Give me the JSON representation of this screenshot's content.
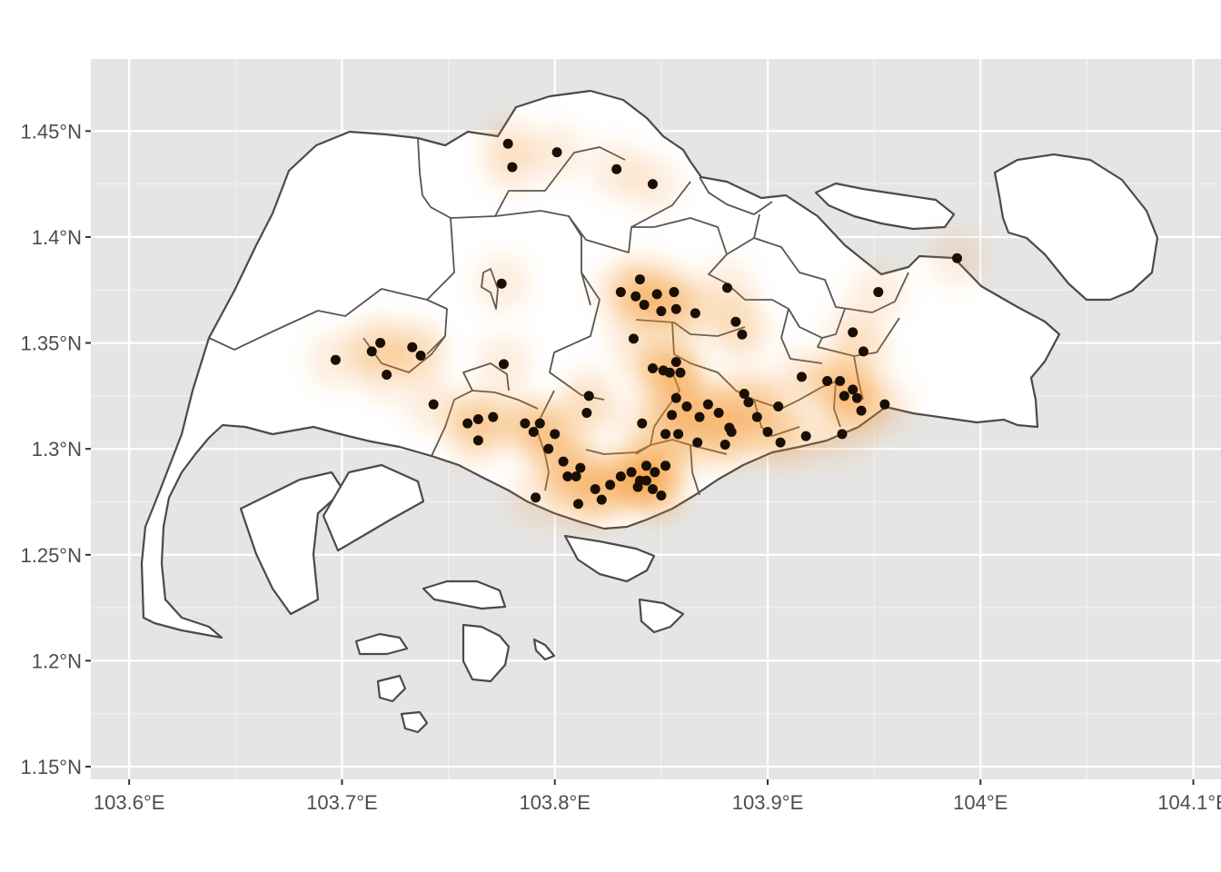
{
  "chart_data": {
    "type": "scatter",
    "title": "",
    "xlabel": "",
    "ylabel": "",
    "xlim": [
      103.582,
      104.113
    ],
    "ylim": [
      1.144,
      1.484
    ],
    "grid": true,
    "background": "#e5e5e5",
    "x_ticks": [
      {
        "value": 103.6,
        "label": "103.6°E"
      },
      {
        "value": 103.7,
        "label": "103.7°E"
      },
      {
        "value": 103.8,
        "label": "103.8°E"
      },
      {
        "value": 103.9,
        "label": "103.9°E"
      },
      {
        "value": 104.0,
        "label": "104°E"
      },
      {
        "value": 104.1,
        "label": "104.1°E"
      }
    ],
    "y_ticks": [
      {
        "value": 1.15,
        "label": "1.15°N"
      },
      {
        "value": 1.2,
        "label": "1.2°N"
      },
      {
        "value": 1.25,
        "label": "1.25°N"
      },
      {
        "value": 1.3,
        "label": "1.3°N"
      },
      {
        "value": 1.35,
        "label": "1.35°N"
      },
      {
        "value": 1.4,
        "label": "1.4°N"
      },
      {
        "value": 1.45,
        "label": "1.45°N"
      }
    ],
    "density_color": "#f28e1c",
    "point_color": "#1a0f05",
    "points": [
      [
        103.778,
        1.444
      ],
      [
        103.78,
        1.433
      ],
      [
        103.801,
        1.44
      ],
      [
        103.829,
        1.432
      ],
      [
        103.846,
        1.425
      ],
      [
        103.775,
        1.378
      ],
      [
        103.697,
        1.342
      ],
      [
        103.714,
        1.346
      ],
      [
        103.718,
        1.35
      ],
      [
        103.721,
        1.335
      ],
      [
        103.733,
        1.348
      ],
      [
        103.737,
        1.344
      ],
      [
        103.743,
        1.321
      ],
      [
        103.776,
        1.34
      ],
      [
        103.759,
        1.312
      ],
      [
        103.764,
        1.314
      ],
      [
        103.764,
        1.304
      ],
      [
        103.771,
        1.315
      ],
      [
        103.786,
        1.312
      ],
      [
        103.79,
        1.308
      ],
      [
        103.793,
        1.312
      ],
      [
        103.797,
        1.3
      ],
      [
        103.8,
        1.307
      ],
      [
        103.804,
        1.294
      ],
      [
        103.806,
        1.287
      ],
      [
        103.81,
        1.287
      ],
      [
        103.815,
        1.317
      ],
      [
        103.816,
        1.325
      ],
      [
        103.791,
        1.277
      ],
      [
        103.811,
        1.274
      ],
      [
        103.819,
        1.281
      ],
      [
        103.822,
        1.276
      ],
      [
        103.826,
        1.283
      ],
      [
        103.831,
        1.287
      ],
      [
        103.836,
        1.289
      ],
      [
        103.84,
        1.285
      ],
      [
        103.846,
        1.281
      ],
      [
        103.85,
        1.278
      ],
      [
        103.843,
        1.292
      ],
      [
        103.847,
        1.289
      ],
      [
        103.852,
        1.292
      ],
      [
        103.831,
        1.374
      ],
      [
        103.838,
        1.372
      ],
      [
        103.84,
        1.38
      ],
      [
        103.842,
        1.368
      ],
      [
        103.848,
        1.373
      ],
      [
        103.856,
        1.374
      ],
      [
        103.857,
        1.366
      ],
      [
        103.85,
        1.365
      ],
      [
        103.866,
        1.364
      ],
      [
        103.837,
        1.352
      ],
      [
        103.846,
        1.338
      ],
      [
        103.851,
        1.337
      ],
      [
        103.854,
        1.336
      ],
      [
        103.857,
        1.341
      ],
      [
        103.859,
        1.336
      ],
      [
        103.857,
        1.324
      ],
      [
        103.855,
        1.316
      ],
      [
        103.852,
        1.307
      ],
      [
        103.858,
        1.307
      ],
      [
        103.862,
        1.32
      ],
      [
        103.868,
        1.315
      ],
      [
        103.872,
        1.321
      ],
      [
        103.877,
        1.317
      ],
      [
        103.882,
        1.31
      ],
      [
        103.889,
        1.326
      ],
      [
        103.891,
        1.322
      ],
      [
        103.895,
        1.315
      ],
      [
        103.9,
        1.308
      ],
      [
        103.905,
        1.32
      ],
      [
        103.881,
        1.376
      ],
      [
        103.885,
        1.36
      ],
      [
        103.888,
        1.354
      ],
      [
        103.88,
        1.302
      ],
      [
        103.883,
        1.308
      ],
      [
        103.906,
        1.303
      ],
      [
        103.916,
        1.334
      ],
      [
        103.918,
        1.306
      ],
      [
        103.928,
        1.332
      ],
      [
        103.934,
        1.332
      ],
      [
        103.936,
        1.325
      ],
      [
        103.94,
        1.328
      ],
      [
        103.942,
        1.324
      ],
      [
        103.944,
        1.318
      ],
      [
        103.955,
        1.321
      ],
      [
        103.935,
        1.307
      ],
      [
        103.94,
        1.355
      ],
      [
        103.945,
        1.346
      ],
      [
        103.952,
        1.374
      ],
      [
        103.989,
        1.39
      ],
      [
        103.841,
        1.312
      ],
      [
        103.867,
        1.303
      ],
      [
        103.843,
        1.285
      ],
      [
        103.839,
        1.282
      ],
      [
        103.812,
        1.291
      ]
    ]
  }
}
